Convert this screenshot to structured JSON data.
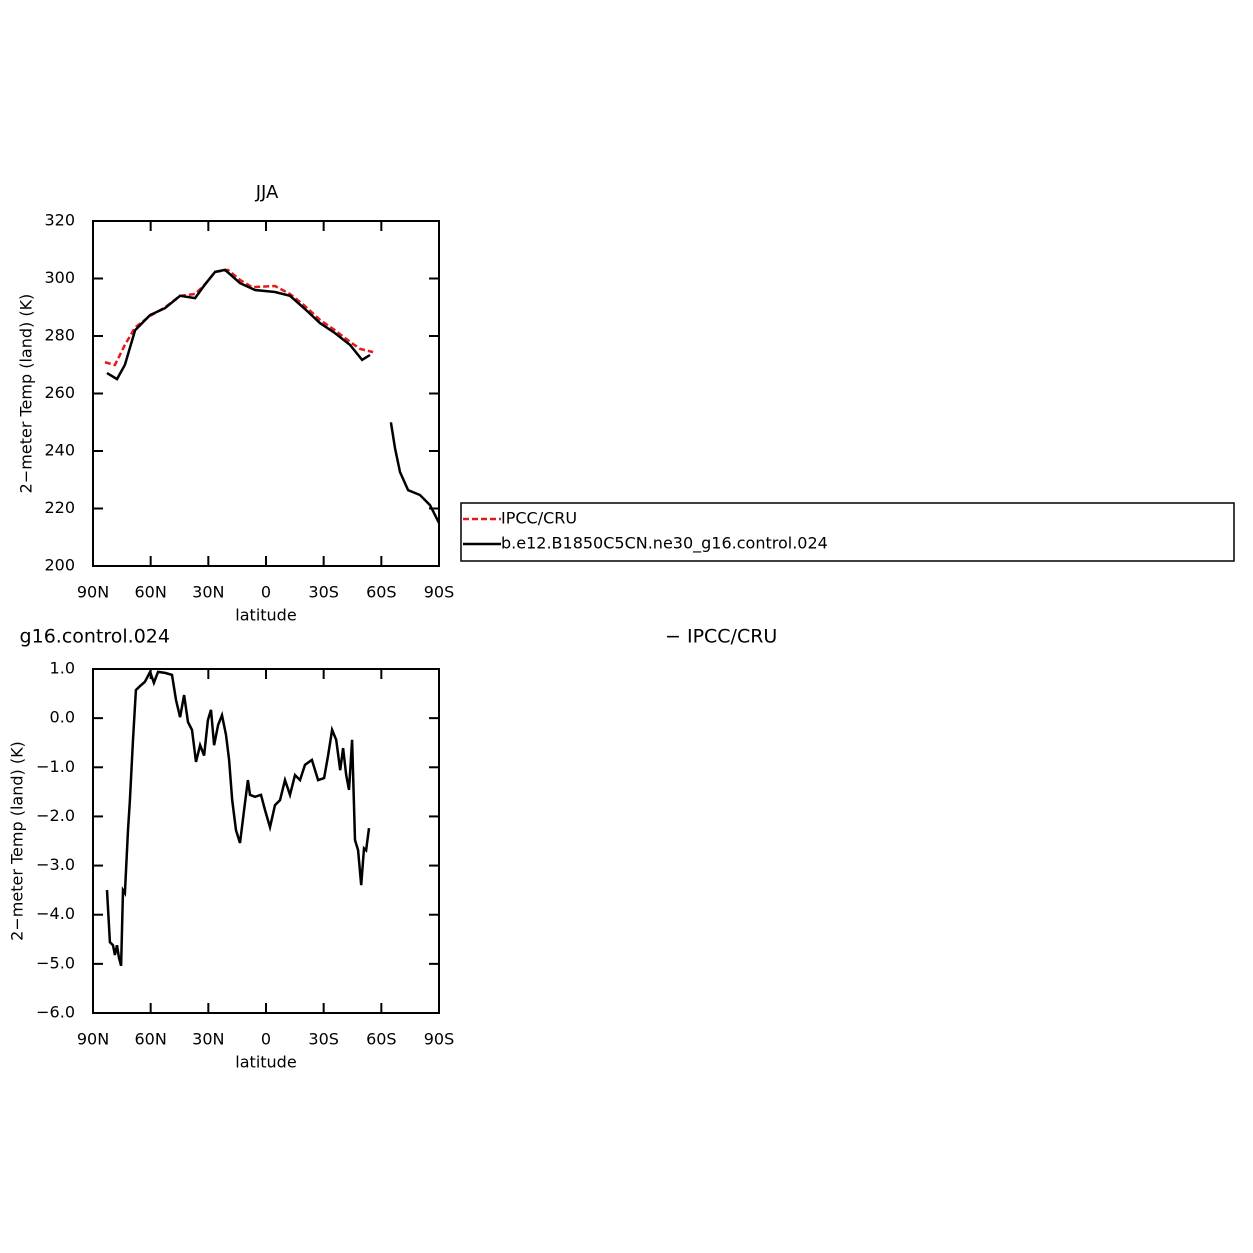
{
  "chart_data": [
    {
      "type": "line",
      "title": "JJA",
      "xlabel": "latitude",
      "ylabel": "2−meter Temp (land) (K)",
      "xlim": [
        90,
        -90
      ],
      "xticks": [
        {
          "value": 90,
          "label": "90N"
        },
        {
          "value": 60,
          "label": "60N"
        },
        {
          "value": 30,
          "label": "30N"
        },
        0,
        {
          "value": -30,
          "label": "30S"
        },
        {
          "value": -60,
          "label": "60S"
        },
        {
          "value": -90,
          "label": "90S"
        }
      ],
      "ylim": [
        200,
        320
      ],
      "yticks": [
        200,
        220,
        240,
        260,
        280,
        300,
        320
      ],
      "legend": true,
      "series": [
        {
          "name": "IPCC/CRU",
          "color": "#e41a1c",
          "style": "dashed",
          "x": [
            83.8,
            78.6,
            73.4,
            68.1,
            60.3,
            52.5,
            44.7,
            36.9,
            31.7,
            26.5,
            19.8,
            13.5,
            7.3,
            -4.7,
            -12.5,
            -20.3,
            -28.1,
            -35.9,
            -43.7,
            -48.9,
            -55.7
          ],
          "values": [
            270.9,
            269.9,
            276.9,
            283,
            287,
            290,
            294,
            294.6,
            298,
            302.3,
            303,
            299.5,
            297,
            297.4,
            294.6,
            290.4,
            285.6,
            282,
            278,
            275.5,
            274.4
          ]
        },
        {
          "name": "b.e12.B1850C5CN.ne30_g16.control.024",
          "color": "#000000",
          "style": "solid",
          "x": [
            82.7,
            77.5,
            73.4,
            68.1,
            60.3,
            52.5,
            44.7,
            36.9,
            31.7,
            26.5,
            21.3,
            13.5,
            5.7,
            -4.7,
            -12.5,
            -20.3,
            -28.1,
            -35.9,
            -43.7,
            -50,
            -54.1,
            -60,
            -65,
            -67.1,
            -69.7,
            -73.9,
            -80.1,
            -85.3,
            -90
          ],
          "values": [
            267.1,
            265,
            270,
            282,
            287.3,
            289.7,
            294,
            293.2,
            298,
            302.3,
            303,
            298.4,
            296,
            295.3,
            294,
            289.4,
            284.5,
            281,
            276.9,
            271.7,
            273.4,
            null,
            250,
            241,
            232.7,
            226.4,
            224.7,
            221.2,
            215
          ]
        }
      ]
    },
    {
      "type": "line",
      "title_left": "g16.control.024",
      "title_right": "− IPCC/CRU",
      "xlabel": "latitude",
      "ylabel": "2−meter Temp (land) (K)",
      "xlim": [
        90,
        -90
      ],
      "xticks": [
        {
          "value": 90,
          "label": "90N"
        },
        {
          "value": 60,
          "label": "60N"
        },
        {
          "value": 30,
          "label": "30N"
        },
        0,
        {
          "value": -30,
          "label": "30S"
        },
        {
          "value": -60,
          "label": "60S"
        },
        {
          "value": -90,
          "label": "90S"
        }
      ],
      "ylim": [
        -6,
        1
      ],
      "yticks": [
        {
          "value": -6,
          "label": "−6.0"
        },
        {
          "value": -5,
          "label": "−5.0"
        },
        {
          "value": -4,
          "label": "−4.0"
        },
        {
          "value": -3,
          "label": "−3.0"
        },
        {
          "value": -2,
          "label": "−2.0"
        },
        {
          "value": -1,
          "label": "−1.0"
        },
        {
          "value": 0,
          "label": "0.0"
        },
        {
          "value": 1,
          "label": "1.0"
        }
      ],
      "legend": false,
      "series": [
        {
          "color": "#000000",
          "style": "solid",
          "x": [
            82.7,
            81.2,
            79.6,
            78.6,
            77.5,
            76.5,
            75.4,
            74.4,
            73.4,
            71.8,
            70.8,
            69.2,
            67.7,
            65.6,
            63.0,
            60.3,
            58.3,
            56.2,
            52.5,
            48.9,
            46.8,
            44.7,
            42.6,
            40.6,
            38.5,
            36.4,
            34.3,
            32.2,
            30.2,
            28.6,
            27.0,
            24.9,
            22.9,
            20.8,
            19.2,
            17.6,
            15.6,
            13.5,
            11.4,
            9.4,
            8.3,
            5.7,
            2.6,
            0.5,
            -2.1,
            -4.7,
            -7.3,
            -9.9,
            -12.5,
            -15.1,
            -17.7,
            -20.3,
            -23.9,
            -27.1,
            -30.2,
            -32.3,
            -34.4,
            -36.5,
            -38.6,
            -40.1,
            -41.7,
            -43.2,
            -44.8,
            -46.3,
            -47.9,
            -49.5,
            -51.0,
            -52.1,
            -53.6
          ],
          "values": [
            -3.5,
            -4.56,
            -4.62,
            -4.82,
            -4.62,
            -4.88,
            -5.04,
            -3.5,
            -3.56,
            -2.28,
            -1.67,
            -0.44,
            0.57,
            0.65,
            0.74,
            0.94,
            0.72,
            0.94,
            0.92,
            0.88,
            0.37,
            0.02,
            0.47,
            -0.08,
            -0.24,
            -0.89,
            -0.55,
            -0.76,
            -0.04,
            0.17,
            -0.55,
            -0.14,
            0.06,
            -0.34,
            -0.85,
            -1.67,
            -2.28,
            -2.54,
            -1.87,
            -1.26,
            -1.56,
            -1.6,
            -1.56,
            -1.87,
            -2.22,
            -1.77,
            -1.67,
            -1.26,
            -1.56,
            -1.16,
            -1.26,
            -0.95,
            -0.85,
            -1.26,
            -1.22,
            -0.76,
            -0.24,
            -0.44,
            -1.06,
            -0.61,
            -1.16,
            -1.46,
            -0.44,
            -2.48,
            -2.69,
            -3.4,
            -2.65,
            -2.69,
            -2.24
          ]
        }
      ]
    }
  ]
}
